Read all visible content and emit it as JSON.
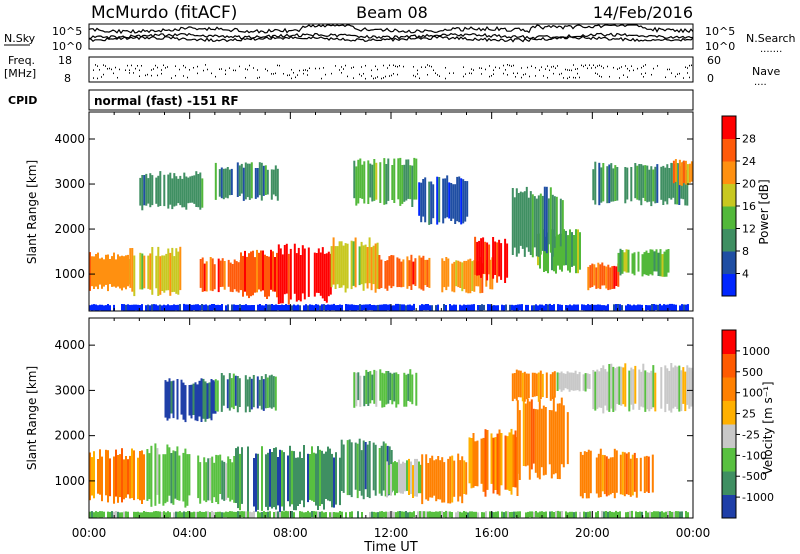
{
  "header": {
    "station": "McMurdo (fitACF)",
    "beam": "Beam 08",
    "date": "14/Feb/2016"
  },
  "noise_panel": {
    "left_label": "N.Sky",
    "right_label": "N.Search",
    "right_dots": ".......",
    "left_ticks": [
      "10^5",
      "10^0"
    ],
    "right_ticks": [
      "10^5",
      "10^0"
    ]
  },
  "freq_panel": {
    "left_label_1": "Freq.",
    "left_label_2": "[MHz]",
    "left_ticks": [
      "18",
      "8"
    ],
    "right_label": "Nave",
    "right_dots": "....",
    "right_ticks": [
      "60",
      "0"
    ]
  },
  "cpid": {
    "label": "CPID",
    "text": "normal (fast) -151 RF"
  },
  "chart_data": [
    {
      "type": "heatmap",
      "name": "power",
      "ylabel": "Slant Range [km]",
      "xlabel": "",
      "x_ticks": [
        "00:00",
        "04:00",
        "08:00",
        "12:00",
        "16:00",
        "20:00",
        "00:00"
      ],
      "x_range_hours": [
        0,
        24
      ],
      "y_ticks": [
        1000,
        2000,
        3000,
        4000
      ],
      "ylim": [
        180,
        4600
      ],
      "colorbar_label": "Power [dB]",
      "colorbar_ticks": [
        "28",
        "24",
        "20",
        "16",
        "12",
        "8",
        "4"
      ],
      "colors": [
        "#0026ff",
        "#1f4ea3",
        "#3f8f62",
        "#52b83a",
        "#c8c820",
        "#ff9010",
        "#ff5a0a",
        "#ff0000"
      ],
      "regions": [
        {
          "x": [
            0.0,
            1.6
          ],
          "y": [
            700,
            1400
          ],
          "level": 5
        },
        {
          "x": [
            1.6,
            3.6
          ],
          "y": [
            600,
            1500
          ],
          "level": 4
        },
        {
          "x": [
            4.4,
            6.0
          ],
          "y": [
            650,
            1300
          ],
          "level": 6
        },
        {
          "x": [
            6.0,
            7.5
          ],
          "y": [
            550,
            1450
          ],
          "level": 6
        },
        {
          "x": [
            7.5,
            9.6
          ],
          "y": [
            450,
            1550
          ],
          "level": 7
        },
        {
          "x": [
            9.6,
            11.5
          ],
          "y": [
            700,
            1700
          ],
          "level": 4
        },
        {
          "x": [
            11.5,
            13.5
          ],
          "y": [
            700,
            1350
          ],
          "level": 6
        },
        {
          "x": [
            14.0,
            16.0
          ],
          "y": [
            650,
            1300
          ],
          "level": 5
        },
        {
          "x": [
            15.3,
            16.6
          ],
          "y": [
            900,
            1750
          ],
          "level": 7
        },
        {
          "x": [
            17.8,
            19.5
          ],
          "y": [
            1100,
            1900
          ],
          "level": 3
        },
        {
          "x": [
            19.8,
            21.0
          ],
          "y": [
            700,
            1200
          ],
          "level": 6
        },
        {
          "x": [
            21.0,
            23.0
          ],
          "y": [
            1000,
            1500
          ],
          "level": 3
        },
        {
          "x": [
            2.0,
            4.5
          ],
          "y": [
            2500,
            3200
          ],
          "level": 2
        },
        {
          "x": [
            5.0,
            7.5
          ],
          "y": [
            2700,
            3400
          ],
          "level": 2
        },
        {
          "x": [
            10.5,
            13.0
          ],
          "y": [
            2600,
            3500
          ],
          "level": 3
        },
        {
          "x": [
            13.0,
            15.0
          ],
          "y": [
            2200,
            3100
          ],
          "level": 1
        },
        {
          "x": [
            16.8,
            18.8
          ],
          "y": [
            1500,
            2800
          ],
          "level": 2
        },
        {
          "x": [
            20.0,
            23.8
          ],
          "y": [
            2600,
            3400
          ],
          "level": 2
        },
        {
          "x": [
            23.2,
            24.0
          ],
          "y": [
            3000,
            3500
          ],
          "level": 5
        },
        {
          "x": [
            0.0,
            24.0
          ],
          "y": [
            180,
            320
          ],
          "level": 0
        }
      ]
    },
    {
      "type": "heatmap",
      "name": "velocity",
      "ylabel": "Slant Range [km]",
      "xlabel": "Time UT",
      "x_ticks": [
        "00:00",
        "04:00",
        "08:00",
        "12:00",
        "16:00",
        "20:00",
        "00:00"
      ],
      "x_range_hours": [
        0,
        24
      ],
      "y_ticks": [
        1000,
        2000,
        3000,
        4000
      ],
      "ylim": [
        180,
        4600
      ],
      "colorbar_label": "Velocity [m s⁻¹]",
      "colorbar_ticks": [
        "1000",
        "500",
        "100",
        "25",
        "-25",
        "-100",
        "-500",
        "-1000"
      ],
      "colors": [
        "#1f3fa8",
        "#3f8f62",
        "#58c040",
        "#c8c8c8",
        "#ffb000",
        "#ff8000",
        "#ff5a00",
        "#ff0000"
      ],
      "regions": [
        {
          "x": [
            0.0,
            2.2
          ],
          "y": [
            600,
            1600
          ],
          "level": 5
        },
        {
          "x": [
            2.2,
            4.0
          ],
          "y": [
            550,
            1700
          ],
          "level": 2
        },
        {
          "x": [
            4.3,
            5.8
          ],
          "y": [
            600,
            1500
          ],
          "level": 2
        },
        {
          "x": [
            5.8,
            10.0
          ],
          "y": [
            450,
            1650
          ],
          "level": 1
        },
        {
          "x": [
            10.0,
            12.0
          ],
          "y": [
            700,
            1800
          ],
          "level": 1
        },
        {
          "x": [
            11.8,
            13.2
          ],
          "y": [
            700,
            1400
          ],
          "level": 3
        },
        {
          "x": [
            13.2,
            15.0
          ],
          "y": [
            600,
            1500
          ],
          "level": 5
        },
        {
          "x": [
            15.0,
            17.0
          ],
          "y": [
            800,
            2000
          ],
          "level": 5
        },
        {
          "x": [
            17.0,
            19.0
          ],
          "y": [
            1200,
            2700
          ],
          "level": 5
        },
        {
          "x": [
            19.5,
            22.5
          ],
          "y": [
            700,
            1600
          ],
          "level": 5
        },
        {
          "x": [
            3.0,
            5.0
          ],
          "y": [
            2400,
            3200
          ],
          "level": 0
        },
        {
          "x": [
            5.0,
            7.5
          ],
          "y": [
            2600,
            3300
          ],
          "level": 1
        },
        {
          "x": [
            10.5,
            13.0
          ],
          "y": [
            2700,
            3400
          ],
          "level": 2
        },
        {
          "x": [
            16.8,
            18.5
          ],
          "y": [
            2800,
            3400
          ],
          "level": 5
        },
        {
          "x": [
            18.5,
            20.0
          ],
          "y": [
            3000,
            3400
          ],
          "level": 3
        },
        {
          "x": [
            20.0,
            24.0
          ],
          "y": [
            2600,
            3500
          ],
          "level": 3
        },
        {
          "x": [
            0.0,
            24.0
          ],
          "y": [
            180,
            320
          ],
          "level": 2
        }
      ]
    }
  ]
}
